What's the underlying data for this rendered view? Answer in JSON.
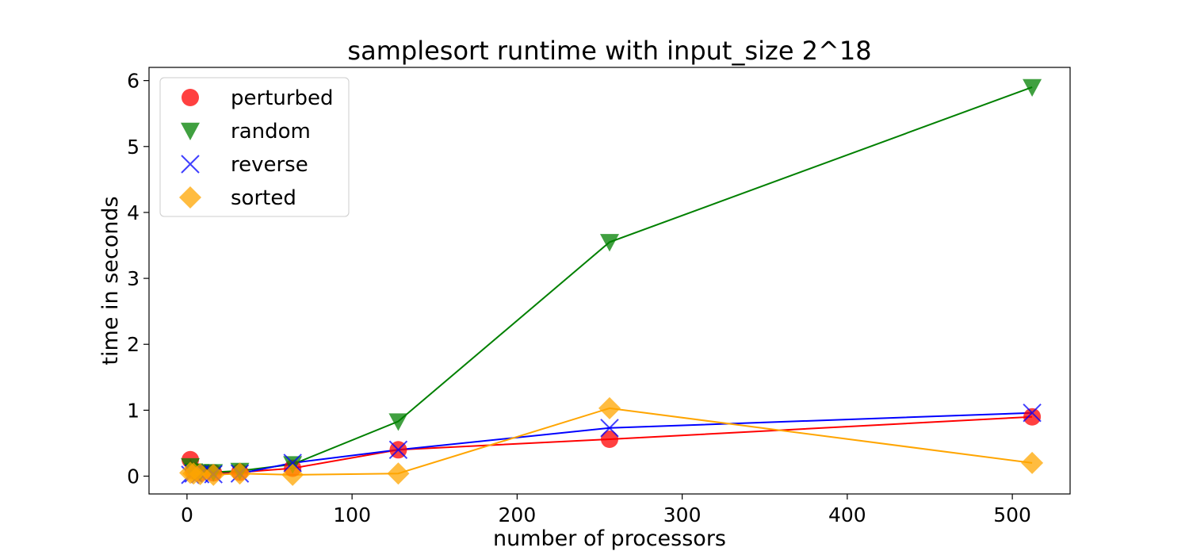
{
  "chart_data": {
    "type": "line",
    "title": "samplesort runtime with input_size 2^18",
    "xlabel": "number of processors",
    "ylabel": "time in seconds",
    "xlim": [
      -23,
      535
    ],
    "ylim": [
      -0.27,
      6.2
    ],
    "x_ticks": [
      0,
      100,
      200,
      300,
      400,
      500
    ],
    "y_ticks": [
      0,
      1,
      2,
      3,
      4,
      5,
      6
    ],
    "x": [
      2,
      4,
      8,
      16,
      32,
      64,
      128,
      256,
      512
    ],
    "legend_position": "upper-left",
    "grid": false,
    "series": [
      {
        "name": "perturbed",
        "color": "#ff0000",
        "marker": "circle",
        "values": [
          0.25,
          0.08,
          0.05,
          0.05,
          0.06,
          0.12,
          0.4,
          0.56,
          0.9
        ]
      },
      {
        "name": "random",
        "color": "#008000",
        "marker": "triangle-down",
        "values": [
          0.15,
          0.07,
          0.06,
          0.06,
          0.08,
          0.18,
          0.83,
          3.55,
          5.9
        ]
      },
      {
        "name": "reverse",
        "color": "#0000ff",
        "marker": "x",
        "values": [
          0.02,
          0.04,
          0.03,
          0.03,
          0.04,
          0.2,
          0.4,
          0.73,
          0.96
        ]
      },
      {
        "name": "sorted",
        "color": "#ffa500",
        "marker": "diamond",
        "values": [
          0.05,
          0.04,
          0.03,
          0.02,
          0.04,
          0.02,
          0.04,
          1.03,
          0.2
        ]
      }
    ]
  }
}
